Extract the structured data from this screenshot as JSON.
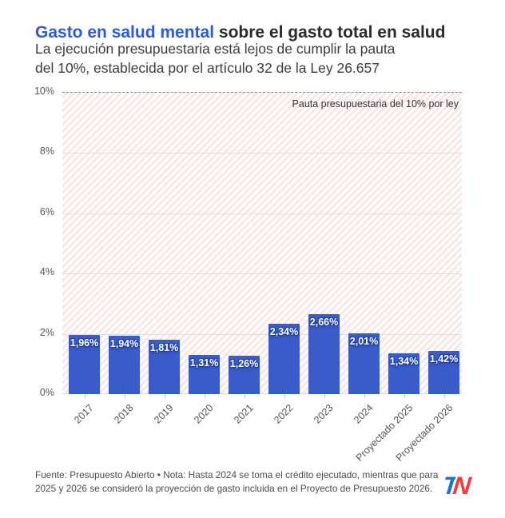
{
  "header": {
    "title_highlight": "Gasto en salud mental",
    "title_rest": " sobre el gasto total en salud",
    "subtitle_line1": "La ejecución presupuestaria está lejos de cumplir la pauta",
    "subtitle_line2": "del 10%, establecida por el artículo 32 de la Ley 26.657"
  },
  "chart_data": {
    "type": "bar",
    "title": "Gasto en salud mental sobre el gasto total en salud",
    "categories": [
      "2017",
      "2018",
      "2019",
      "2020",
      "2021",
      "2022",
      "2023",
      "2024",
      "Proyectado 2025",
      "Proyectado 2026"
    ],
    "values": [
      1.96,
      1.94,
      1.81,
      1.31,
      1.26,
      2.34,
      2.66,
      2.01,
      1.34,
      1.42
    ],
    "bar_labels": [
      "1,96%",
      "1,94%",
      "1,81%",
      "1,31%",
      "1,26%",
      "2,34%",
      "2,66%",
      "2,01%",
      "1,34%",
      "1,42%"
    ],
    "y_ticks": [
      0,
      2,
      4,
      6,
      8,
      10
    ],
    "y_tick_labels": [
      "0%",
      "2%",
      "4%",
      "6%",
      "8%",
      "10%"
    ],
    "ylim": [
      0,
      10
    ],
    "grid": true,
    "legend": "none",
    "reference_line": {
      "value": 10,
      "style": "dashed",
      "label": "Pauta presupuestaria del 10% por ley"
    },
    "colors": {
      "bar": "#3a5ccb",
      "bar_label_outline": "#20409c",
      "title_highlight": "#2e5cd6",
      "hatch_stripe": "#f7e7e7",
      "gridline": "#e7dcdc"
    }
  },
  "footer": {
    "note": "Fuente: Presupuesto Abierto • Nota: Hasta 2024 se toma el crédito ejecutado, mientras que para 2025 y 2026 se consideró la proyección de gasto incluida en el Proyecto de Presupuesto 2026.",
    "logo_t": "T",
    "logo_n": "N"
  }
}
